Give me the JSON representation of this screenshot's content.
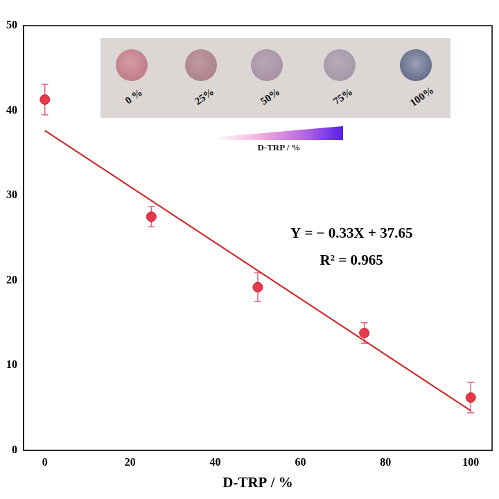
{
  "chart_data": {
    "type": "scatter",
    "x_label": "D-TRP / %",
    "x": [
      0,
      25,
      50,
      75,
      100
    ],
    "values": [
      41.3,
      27.5,
      19.2,
      13.8,
      6.2
    ],
    "error": [
      1.8,
      1.2,
      1.7,
      1.2,
      1.8
    ],
    "color": "#e8394a",
    "marker": "circle",
    "fit_line": {
      "x": [
        0,
        100
      ],
      "values": [
        37.65,
        4.65
      ],
      "color": "#d42020",
      "equation": "Y = − 0.33X + 37.65",
      "r_squared": "R² = 0.965"
    },
    "xlim": [
      -5,
      105
    ],
    "xticks": [
      0,
      20,
      40,
      60,
      80,
      100
    ],
    "ylim": [
      0,
      50
    ],
    "yticks": [
      0,
      10,
      20,
      30,
      40,
      50
    ],
    "grid": false,
    "inset": {
      "labels": [
        "0 %",
        "25%",
        "50%",
        "75%",
        "100%"
      ],
      "gradient_label": "D-TRP / %"
    }
  }
}
